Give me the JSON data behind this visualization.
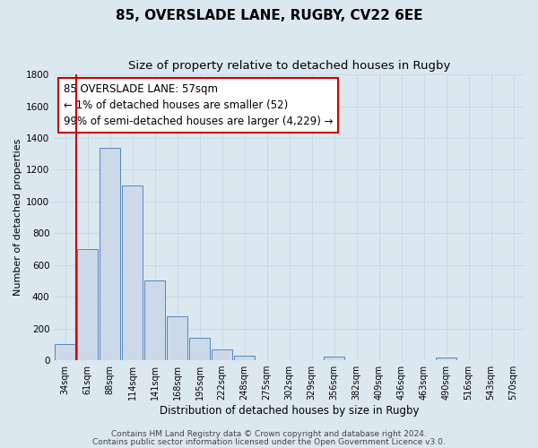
{
  "title": "85, OVERSLADE LANE, RUGBY, CV22 6EE",
  "subtitle": "Size of property relative to detached houses in Rugby",
  "xlabel": "Distribution of detached houses by size in Rugby",
  "ylabel": "Number of detached properties",
  "footer_lines": [
    "Contains HM Land Registry data © Crown copyright and database right 2024.",
    "Contains public sector information licensed under the Open Government Licence v3.0."
  ],
  "bar_labels": [
    "34sqm",
    "61sqm",
    "88sqm",
    "114sqm",
    "141sqm",
    "168sqm",
    "195sqm",
    "222sqm",
    "248sqm",
    "275sqm",
    "302sqm",
    "329sqm",
    "356sqm",
    "382sqm",
    "409sqm",
    "436sqm",
    "463sqm",
    "490sqm",
    "516sqm",
    "543sqm",
    "570sqm"
  ],
  "bar_values": [
    100,
    700,
    1340,
    1100,
    500,
    275,
    140,
    70,
    30,
    0,
    0,
    0,
    25,
    0,
    0,
    0,
    0,
    15,
    0,
    0,
    0
  ],
  "bar_color": "#ccd9e8",
  "bar_edge_color": "#5588bb",
  "annotation_box_text": "85 OVERSLADE LANE: 57sqm\n← 1% of detached houses are smaller (52)\n99% of semi-detached houses are larger (4,229) →",
  "vline_color": "#cc0000",
  "box_edge_color": "#cc0000",
  "box_face_color": "#ffffff",
  "ylim": [
    0,
    1800
  ],
  "yticks": [
    0,
    200,
    400,
    600,
    800,
    1000,
    1200,
    1400,
    1600,
    1800
  ],
  "grid_color": "#c8d8e8",
  "background_color": "#dce8f0",
  "title_fontsize": 11,
  "subtitle_fontsize": 9.5,
  "annotation_fontsize": 8.5,
  "footer_fontsize": 6.5
}
